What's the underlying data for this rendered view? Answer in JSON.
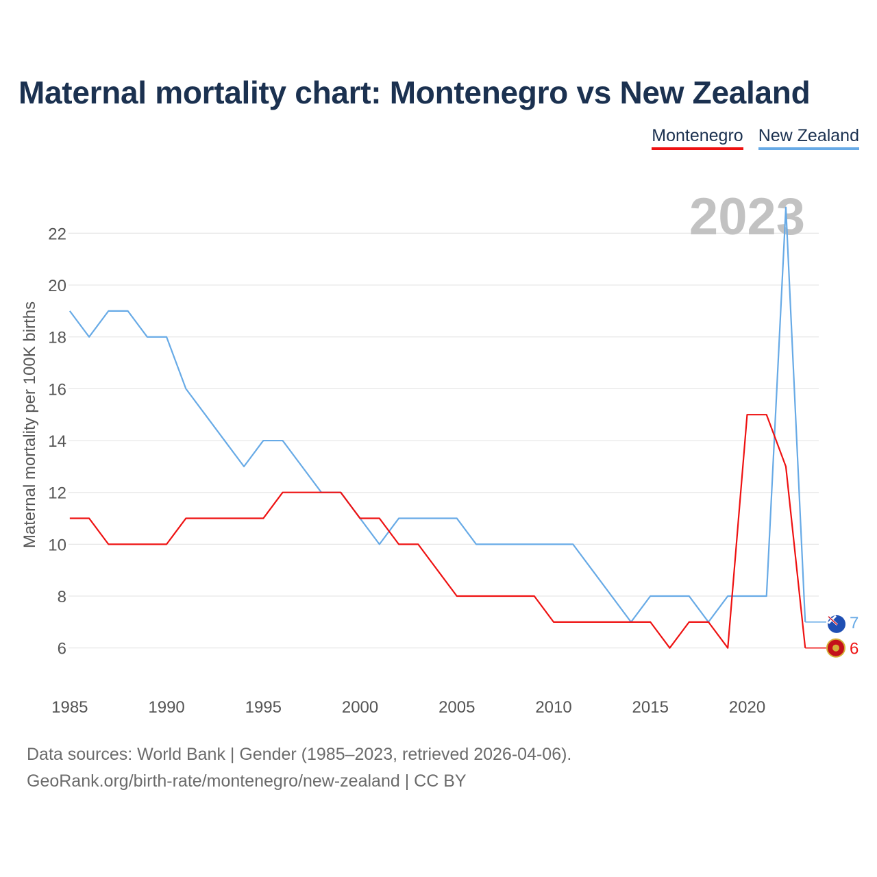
{
  "title": "Maternal mortality chart: Montenegro vs New Zealand",
  "legend": [
    {
      "label": "Montenegro",
      "color": "#ee1111"
    },
    {
      "label": "New Zealand",
      "color": "#67aae6"
    }
  ],
  "year_watermark": "2023",
  "footer": {
    "source": "Data sources: World Bank | Gender (1985–2023, retrieved 2026-04-06).",
    "credit": "GeoRank.org/birth-rate/montenegro/new-zealand | CC BY"
  },
  "chart_data": {
    "type": "line",
    "title": "Maternal mortality chart: Montenegro vs New Zealand",
    "xlabel": "",
    "ylabel": "Maternal mortality per 100K births",
    "x": [
      1985,
      1986,
      1987,
      1988,
      1989,
      1990,
      1991,
      1992,
      1993,
      1994,
      1995,
      1996,
      1997,
      1998,
      1999,
      2000,
      2001,
      2002,
      2003,
      2004,
      2005,
      2006,
      2007,
      2008,
      2009,
      2010,
      2011,
      2012,
      2013,
      2014,
      2015,
      2016,
      2017,
      2018,
      2019,
      2020,
      2021,
      2022,
      2023
    ],
    "xlim": [
      1984.05,
      2023.7
    ],
    "ylim": [
      4.3,
      23.2
    ],
    "xticks": [
      1985,
      1990,
      1995,
      2000,
      2005,
      2010,
      2015,
      2020
    ],
    "yticks": [
      6,
      8,
      10,
      12,
      14,
      16,
      18,
      20,
      22
    ],
    "grid": true,
    "series": [
      {
        "name": "Montenegro",
        "color": "#ee1111",
        "end_label": "6",
        "values": [
          11,
          11,
          10,
          10,
          10,
          10,
          11,
          11,
          11,
          11,
          11,
          12,
          12,
          12,
          12,
          11,
          11,
          10,
          10,
          9,
          8,
          8,
          8,
          8,
          8,
          7,
          7,
          7,
          7,
          7,
          7,
          6,
          7,
          7,
          6,
          15,
          15,
          13,
          6
        ]
      },
      {
        "name": "New Zealand",
        "color": "#67aae6",
        "end_label": "7",
        "values": [
          19,
          18,
          19,
          19,
          18,
          18,
          16,
          15,
          14,
          13,
          14,
          14,
          13,
          12,
          12,
          11,
          10,
          11,
          11,
          11,
          11,
          10,
          10,
          10,
          10,
          10,
          10,
          9,
          8,
          7,
          8,
          8,
          8,
          7,
          8,
          8,
          8,
          23,
          7
        ]
      }
    ]
  }
}
